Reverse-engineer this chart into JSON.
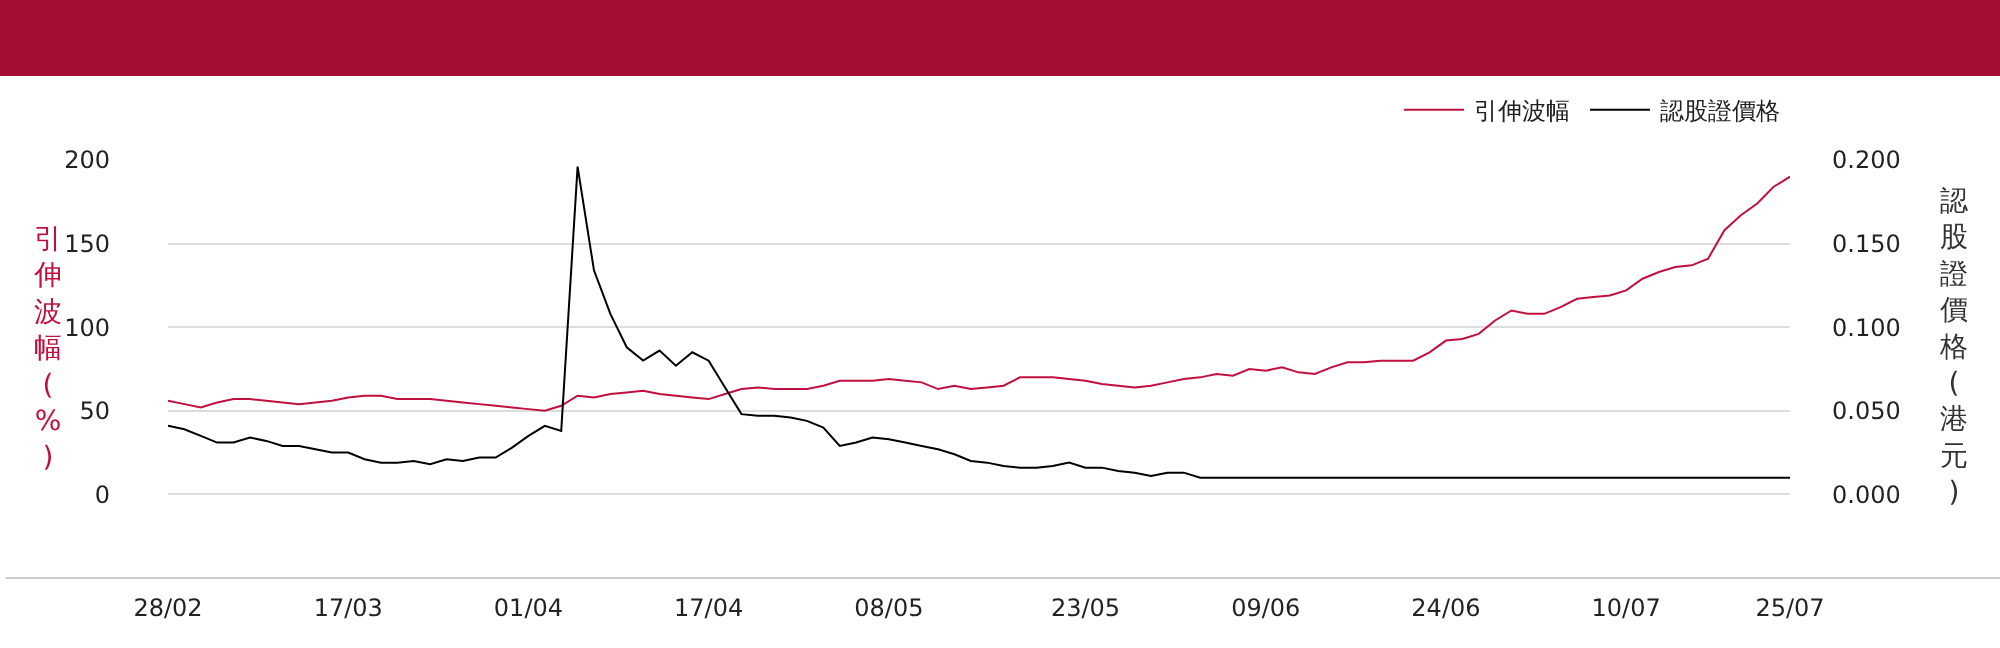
{
  "chart_data": {
    "type": "line",
    "ylabel": "引伸波幅(%)",
    "y2label": "認股證價格(港元)",
    "categories": [
      "28/02",
      null,
      null,
      null,
      null,
      null,
      null,
      null,
      null,
      null,
      null,
      "17/03",
      null,
      null,
      null,
      null,
      null,
      null,
      null,
      null,
      null,
      null,
      "01/04",
      null,
      null,
      null,
      null,
      null,
      null,
      null,
      null,
      null,
      null,
      "17/04",
      null,
      null,
      null,
      null,
      null,
      null,
      null,
      null,
      null,
      null,
      "08/05",
      null,
      null,
      null,
      null,
      null,
      null,
      null,
      null,
      null,
      null,
      null,
      "23/05",
      null,
      null,
      null,
      null,
      null,
      null,
      null,
      null,
      null,
      null,
      "09/06",
      null,
      null,
      null,
      null,
      null,
      null,
      null,
      null,
      null,
      null,
      "24/06",
      null,
      null,
      null,
      null,
      null,
      null,
      null,
      null,
      null,
      null,
      "10/07",
      null,
      null,
      null,
      null,
      null,
      null,
      null,
      null,
      null,
      "25/07"
    ],
    "series": [
      {
        "name": "引伸波幅",
        "color": "#c0103f",
        "values": [
          56,
          54,
          52,
          55,
          57,
          57,
          56,
          55,
          54,
          55,
          56,
          58,
          59,
          59,
          57,
          57,
          57,
          56,
          55,
          54,
          53,
          52,
          51,
          50,
          53,
          59,
          58,
          60,
          61,
          62,
          60,
          59,
          58,
          57,
          60,
          63,
          64,
          63,
          63,
          63,
          65,
          68,
          68,
          68,
          69,
          68,
          67,
          63,
          65,
          63,
          64,
          65,
          70,
          70,
          70,
          69,
          68,
          66,
          65,
          64,
          65,
          67,
          69,
          70,
          72,
          71,
          75,
          74,
          76,
          73,
          72,
          76,
          79,
          79,
          80,
          80,
          80,
          85,
          92,
          93,
          96,
          104,
          110,
          108,
          108,
          112,
          117,
          118,
          119,
          122,
          129,
          133,
          136,
          137,
          141,
          158,
          167,
          174,
          184,
          190
        ]
      },
      {
        "name": "認股證價格",
        "color": "#000000",
        "axis": "y2",
        "values": [
          0.041,
          0.039,
          0.035,
          0.031,
          0.031,
          0.034,
          0.032,
          0.029,
          0.029,
          0.027,
          0.025,
          0.025,
          0.021,
          0.019,
          0.019,
          0.02,
          0.018,
          0.021,
          0.02,
          0.022,
          0.022,
          0.028,
          0.035,
          0.041,
          0.038,
          0.196,
          0.134,
          0.108,
          0.088,
          0.08,
          0.086,
          0.077,
          0.085,
          0.08,
          0.064,
          0.048,
          0.047,
          0.047,
          0.046,
          0.044,
          0.04,
          0.029,
          0.031,
          0.034,
          0.033,
          0.031,
          0.029,
          0.027,
          0.024,
          0.02,
          0.019,
          0.017,
          0.016,
          0.016,
          0.017,
          0.019,
          0.016,
          0.016,
          0.014,
          0.013,
          0.011,
          0.013,
          0.013,
          0.01,
          0.01,
          0.01,
          0.01,
          0.01,
          0.01,
          0.01,
          0.01,
          0.01,
          0.01,
          0.01,
          0.01,
          0.01,
          0.01,
          0.01,
          0.01,
          0.01,
          0.01,
          0.01,
          0.01,
          0.01,
          0.01,
          0.01,
          0.01,
          0.01,
          0.01,
          0.01,
          0.01,
          0.01,
          0.01,
          0.01,
          0.01,
          0.01,
          0.01,
          0.01,
          0.01,
          0.01
        ]
      }
    ],
    "ylim": [
      -50,
      200
    ],
    "yticks": [
      0,
      50,
      100,
      150,
      200
    ],
    "y2lim": [
      -0.05,
      0.2
    ],
    "y2ticks": [
      {
        "value": 0,
        "label": "0.000"
      },
      {
        "value": 0.05,
        "label": "0.050"
      },
      {
        "value": 0.1,
        "label": "0.100"
      },
      {
        "value": 0.15,
        "label": "0.150"
      },
      {
        "value": 0.2,
        "label": "0.200"
      }
    ],
    "grid": "y",
    "legend": "top right",
    "marker": "none",
    "line_style": "solid"
  }
}
